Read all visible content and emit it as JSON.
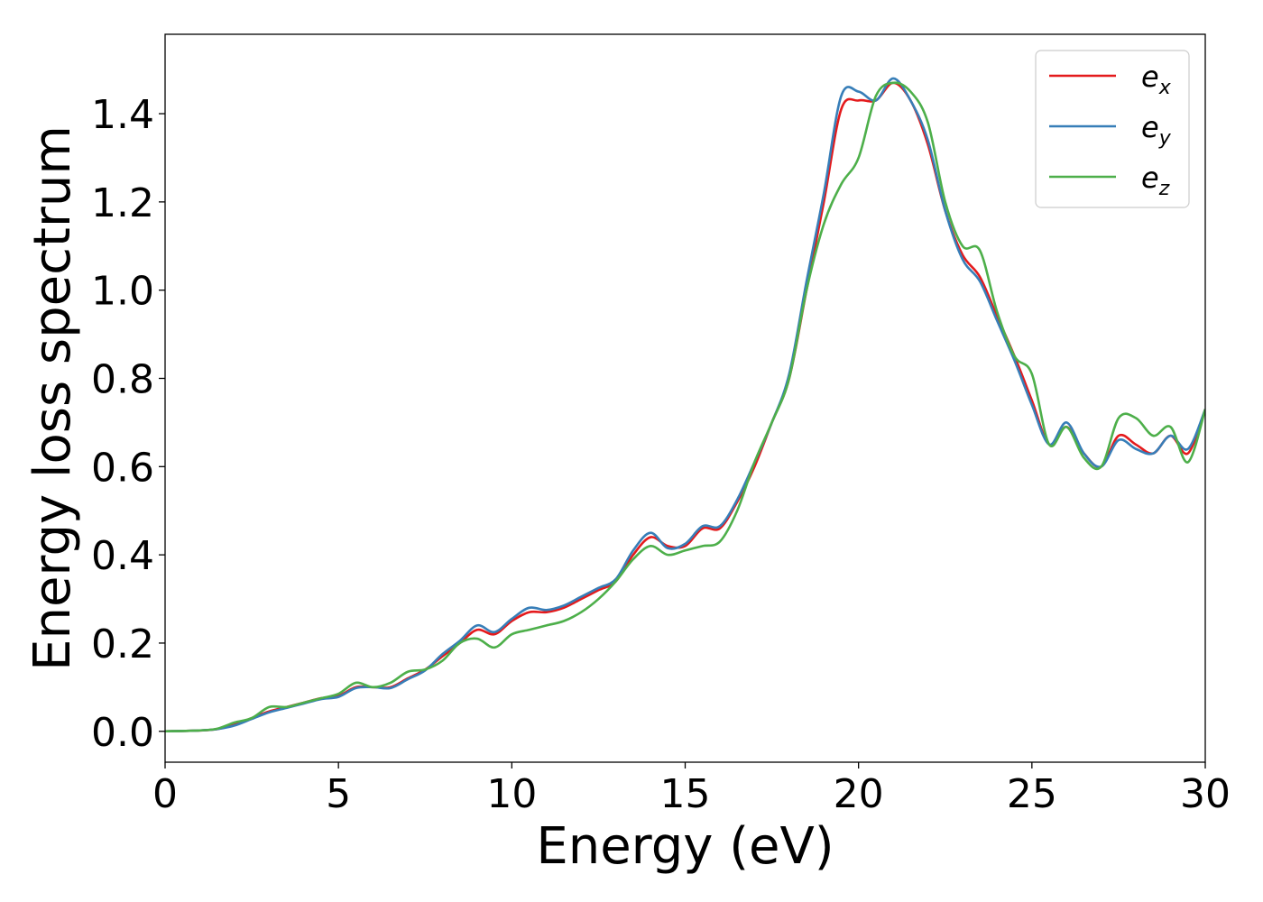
{
  "chart_data": {
    "type": "line",
    "xlabel": "Energy (eV)",
    "ylabel": "Energy loss spectrum",
    "xlim": [
      0,
      30
    ],
    "ylim": [
      -0.07,
      1.58
    ],
    "xticks": [
      0,
      5,
      10,
      15,
      20,
      25,
      30
    ],
    "xtick_labels": [
      "0",
      "5",
      "10",
      "15",
      "20",
      "25",
      "30"
    ],
    "yticks": [
      0.0,
      0.2,
      0.4,
      0.6,
      0.8,
      1.0,
      1.2,
      1.4
    ],
    "ytick_labels": [
      "0.0",
      "0.2",
      "0.4",
      "0.6",
      "0.8",
      "1.0",
      "1.2",
      "1.4"
    ],
    "grid": false,
    "legend_position": "top-right",
    "series": [
      {
        "name": "e_x",
        "label_base": "e",
        "label_sub": "x",
        "color": "#e41a1c",
        "x": [
          0,
          1,
          1.5,
          2,
          2.5,
          3,
          3.5,
          4,
          4.5,
          5,
          5.5,
          6,
          6.5,
          7,
          7.5,
          8,
          8.5,
          9,
          9.5,
          10,
          10.5,
          11,
          11.5,
          12,
          12.5,
          13,
          13.5,
          14,
          14.5,
          15,
          15.5,
          16,
          16.5,
          17,
          17.5,
          18,
          18.5,
          19,
          19.5,
          20,
          20.5,
          21,
          21.5,
          22,
          22.5,
          23,
          23.5,
          24,
          24.5,
          25,
          25.5,
          26,
          26.5,
          27,
          27.5,
          28,
          28.5,
          29,
          29.5,
          30
        ],
        "y": [
          0.0,
          0.002,
          0.005,
          0.015,
          0.03,
          0.045,
          0.055,
          0.065,
          0.075,
          0.08,
          0.1,
          0.1,
          0.1,
          0.12,
          0.14,
          0.17,
          0.2,
          0.23,
          0.22,
          0.25,
          0.27,
          0.27,
          0.28,
          0.3,
          0.32,
          0.34,
          0.4,
          0.44,
          0.42,
          0.42,
          0.46,
          0.46,
          0.52,
          0.6,
          0.7,
          0.8,
          1.0,
          1.2,
          1.41,
          1.43,
          1.43,
          1.47,
          1.43,
          1.33,
          1.18,
          1.08,
          1.03,
          0.94,
          0.85,
          0.75,
          0.65,
          0.69,
          0.63,
          0.6,
          0.67,
          0.65,
          0.63,
          0.67,
          0.63,
          0.73
        ]
      },
      {
        "name": "e_y",
        "label_base": "e",
        "label_sub": "y",
        "color": "#377eb8",
        "x": [
          0,
          1,
          1.5,
          2,
          2.5,
          3,
          3.5,
          4,
          4.5,
          5,
          5.5,
          6,
          6.5,
          7,
          7.5,
          8,
          8.5,
          9,
          9.5,
          10,
          10.5,
          11,
          11.5,
          12,
          12.5,
          13,
          13.5,
          14,
          14.5,
          15,
          15.5,
          16,
          16.5,
          17,
          17.5,
          18,
          18.5,
          19,
          19.5,
          20,
          20.5,
          21,
          21.5,
          22,
          22.5,
          23,
          23.5,
          24,
          24.5,
          25,
          25.5,
          26,
          26.5,
          27,
          27.5,
          28,
          28.5,
          29,
          29.5,
          30
        ],
        "y": [
          0.0,
          0.002,
          0.005,
          0.013,
          0.028,
          0.043,
          0.053,
          0.063,
          0.073,
          0.078,
          0.098,
          0.1,
          0.098,
          0.118,
          0.138,
          0.175,
          0.205,
          0.24,
          0.225,
          0.255,
          0.28,
          0.275,
          0.285,
          0.305,
          0.325,
          0.345,
          0.41,
          0.45,
          0.415,
          0.425,
          0.465,
          0.465,
          0.525,
          0.61,
          0.7,
          0.81,
          1.02,
          1.22,
          1.44,
          1.45,
          1.43,
          1.48,
          1.43,
          1.34,
          1.18,
          1.07,
          1.02,
          0.93,
          0.84,
          0.74,
          0.65,
          0.7,
          0.63,
          0.6,
          0.66,
          0.64,
          0.63,
          0.67,
          0.64,
          0.73
        ]
      },
      {
        "name": "e_z",
        "label_base": "e",
        "label_sub": "z",
        "color": "#4daf4a",
        "x": [
          0,
          1,
          1.5,
          2,
          2.5,
          3,
          3.5,
          4,
          4.5,
          5,
          5.5,
          6,
          6.5,
          7,
          7.5,
          8,
          8.5,
          9,
          9.5,
          10,
          10.5,
          11,
          11.5,
          12,
          12.5,
          13,
          13.5,
          14,
          14.5,
          15,
          15.5,
          16,
          16.5,
          17,
          17.5,
          18,
          18.5,
          19,
          19.5,
          20,
          20.5,
          21,
          21.5,
          22,
          22.5,
          23,
          23.5,
          24,
          24.5,
          25,
          25.5,
          26,
          26.5,
          27,
          27.5,
          28,
          28.5,
          29,
          29.5,
          30
        ],
        "y": [
          0.0,
          0.002,
          0.006,
          0.02,
          0.03,
          0.055,
          0.055,
          0.065,
          0.075,
          0.085,
          0.11,
          0.1,
          0.11,
          0.135,
          0.14,
          0.16,
          0.2,
          0.21,
          0.19,
          0.22,
          0.23,
          0.24,
          0.25,
          0.27,
          0.3,
          0.34,
          0.39,
          0.42,
          0.4,
          0.41,
          0.42,
          0.43,
          0.5,
          0.61,
          0.7,
          0.8,
          1.0,
          1.15,
          1.24,
          1.3,
          1.44,
          1.47,
          1.45,
          1.38,
          1.2,
          1.1,
          1.09,
          0.95,
          0.85,
          0.81,
          0.65,
          0.69,
          0.62,
          0.6,
          0.71,
          0.71,
          0.67,
          0.69,
          0.61,
          0.73
        ]
      }
    ]
  }
}
